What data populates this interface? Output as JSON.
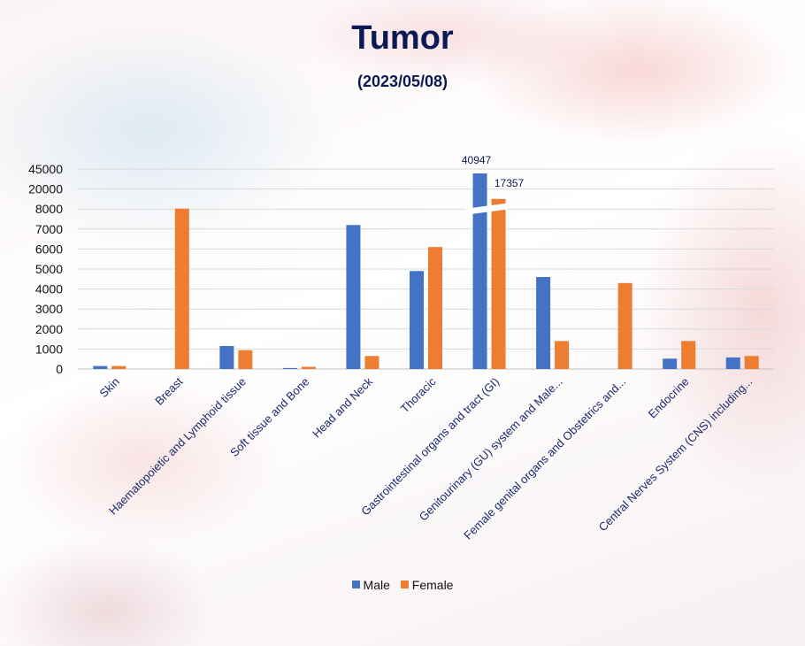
{
  "chart_data": {
    "type": "bar",
    "title": "Tumor",
    "subtitle": "(2023/05/08)",
    "xlabel": "",
    "ylabel": "",
    "y_axis": {
      "type": "broken",
      "ticks": [
        "45000",
        "20000",
        "8000",
        "7000",
        "6000",
        "5000",
        "4000",
        "3000",
        "2000",
        "1000",
        "0"
      ],
      "break_above": 8000
    },
    "grid": true,
    "legend_position": "bottom",
    "categories": [
      "Skin",
      "Breast",
      "Haematopoietic and Lymphoid tissue",
      "Soft tissue and Bone",
      "Head and Neck",
      "Thoracic",
      "Gastrointestinal organs and tract (GI)",
      "Genitourinary (GU) system  and Male...",
      "Female genital organs and  Obstetrics and...",
      "Endocrine",
      "Central Nerves System (CNS) including..."
    ],
    "series": [
      {
        "name": "Male",
        "color": "#4472c4",
        "values": [
          150,
          0,
          1150,
          50,
          7200,
          4900,
          40947,
          4600,
          0,
          520,
          580
        ]
      },
      {
        "name": "Female",
        "color": "#ed7d31",
        "values": [
          150,
          8400,
          940,
          110,
          650,
          6100,
          17357,
          1400,
          4300,
          1400,
          650
        ]
      }
    ],
    "data_labels": [
      {
        "category": "Gastrointestinal organs and tract (GI)",
        "series": "Male",
        "text": "40947"
      },
      {
        "category": "Gastrointestinal organs and tract (GI)",
        "series": "Female",
        "text": "17357"
      }
    ]
  }
}
